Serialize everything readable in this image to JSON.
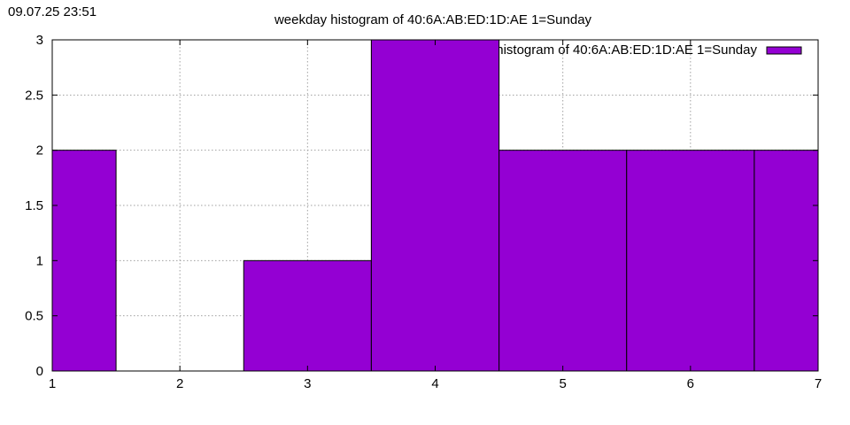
{
  "timestamp": "09.07.25 23:51",
  "chart_data": {
    "type": "bar",
    "title": "weekday histogram of 40:6A:AB:ED:1D:AE 1=Sunday",
    "legend_label": "weekday histogram of 40:6A:AB:ED:1D:AE 1=Sunday",
    "legend_position": "top-right",
    "x": [
      1,
      2,
      3,
      4,
      5,
      6,
      7
    ],
    "values": [
      2,
      0,
      1,
      3,
      2,
      2,
      2
    ],
    "xlim": [
      1,
      7
    ],
    "ylim": [
      0,
      3
    ],
    "xticks": [
      1,
      2,
      3,
      4,
      5,
      6,
      7
    ],
    "yticks": [
      0,
      0.5,
      1,
      1.5,
      2,
      2.5,
      3
    ],
    "ytick_labels": [
      "0",
      "0.5",
      "1",
      "1.5",
      "2",
      "2.5",
      "3"
    ],
    "grid": true,
    "bar_color": "#9400d3",
    "xlabel": "",
    "ylabel": ""
  }
}
